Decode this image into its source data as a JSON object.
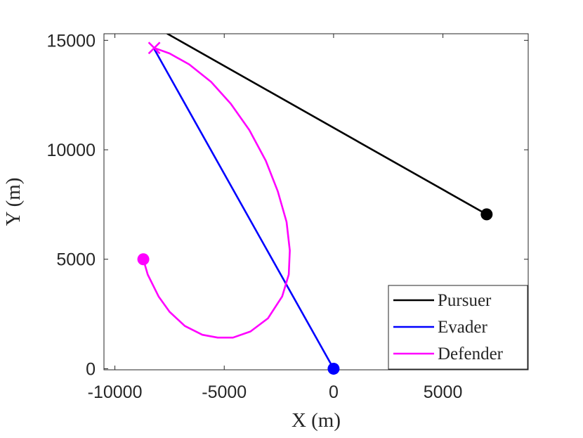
{
  "chart_data": {
    "type": "line",
    "xlabel": "X (m)",
    "ylabel": "Y (m)",
    "xlim": [
      -10500,
      8900
    ],
    "ylim": [
      -50,
      15300
    ],
    "xticks": [
      -10000,
      -5000,
      0,
      5000
    ],
    "xtick_labels": [
      "-10000",
      "-5000",
      "0",
      "5000"
    ],
    "yticks": [
      0,
      5000,
      10000,
      15000
    ],
    "ytick_labels": [
      "0",
      "5000",
      "10000",
      "15000"
    ],
    "grid": false,
    "legend_position": "bottom-right",
    "series": [
      {
        "name": "Pursuer",
        "color": "#000000",
        "start_marker": "circle",
        "points": [
          [
            7000,
            7050
          ],
          [
            -7600,
            15300
          ]
        ]
      },
      {
        "name": "Evader",
        "color": "#0000ff",
        "start_marker": "circle",
        "points": [
          [
            0,
            0
          ],
          [
            -8200,
            14600
          ]
        ]
      },
      {
        "name": "Defender",
        "color": "#ff00ff",
        "start_marker": "circle",
        "end_marker": "x",
        "points": [
          [
            -8700,
            5000
          ],
          [
            -8500,
            4300
          ],
          [
            -8000,
            3300
          ],
          [
            -7500,
            2600
          ],
          [
            -6800,
            1950
          ],
          [
            -6000,
            1550
          ],
          [
            -5300,
            1420
          ],
          [
            -4600,
            1420
          ],
          [
            -3800,
            1700
          ],
          [
            -3000,
            2300
          ],
          [
            -2350,
            3300
          ],
          [
            -2050,
            4300
          ],
          [
            -2000,
            5400
          ],
          [
            -2150,
            6700
          ],
          [
            -2550,
            8100
          ],
          [
            -3100,
            9500
          ],
          [
            -3850,
            10900
          ],
          [
            -4700,
            12100
          ],
          [
            -5600,
            13100
          ],
          [
            -6600,
            13900
          ],
          [
            -7500,
            14400
          ],
          [
            -8200,
            14650
          ]
        ]
      }
    ]
  }
}
